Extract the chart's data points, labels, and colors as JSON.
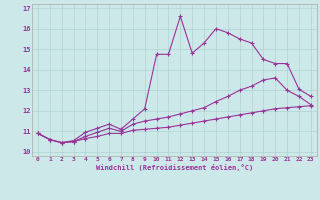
{
  "xlabel": "Windchill (Refroidissement éolien,°C)",
  "background_color": "#cce8e8",
  "line_color": "#993399",
  "xlim": [
    -0.5,
    23.5
  ],
  "ylim": [
    9.8,
    17.2
  ],
  "yticks": [
    10,
    11,
    12,
    13,
    14,
    15,
    16,
    17
  ],
  "xticks": [
    0,
    1,
    2,
    3,
    4,
    5,
    6,
    7,
    8,
    9,
    10,
    11,
    12,
    13,
    14,
    15,
    16,
    17,
    18,
    19,
    20,
    21,
    22,
    23
  ],
  "series1_x": [
    0,
    1,
    2,
    3,
    4,
    5,
    6,
    7,
    8,
    9,
    10,
    11,
    12,
    13,
    14,
    15,
    16,
    17,
    18,
    19,
    20,
    21,
    22,
    23
  ],
  "series1_y": [
    10.9,
    10.6,
    10.45,
    10.5,
    10.65,
    10.75,
    10.9,
    10.9,
    11.05,
    11.1,
    11.15,
    11.2,
    11.3,
    11.4,
    11.5,
    11.6,
    11.7,
    11.8,
    11.9,
    12.0,
    12.1,
    12.15,
    12.2,
    12.25
  ],
  "series2_x": [
    0,
    1,
    2,
    3,
    4,
    5,
    6,
    7,
    8,
    9,
    10,
    11,
    12,
    13,
    14,
    15,
    16,
    17,
    18,
    19,
    20,
    21,
    22,
    23
  ],
  "series2_y": [
    10.9,
    10.6,
    10.45,
    10.5,
    10.75,
    10.95,
    11.15,
    11.0,
    11.35,
    11.5,
    11.6,
    11.7,
    11.85,
    12.0,
    12.15,
    12.45,
    12.7,
    13.0,
    13.2,
    13.5,
    13.6,
    13.0,
    12.7,
    12.3
  ],
  "series3_x": [
    0,
    1,
    2,
    3,
    4,
    5,
    6,
    7,
    8,
    9,
    10,
    11,
    12,
    13,
    14,
    15,
    16,
    17,
    18,
    19,
    20,
    21,
    22,
    23
  ],
  "series3_y": [
    10.9,
    10.6,
    10.45,
    10.55,
    10.95,
    11.15,
    11.35,
    11.1,
    11.6,
    12.1,
    14.75,
    14.75,
    16.6,
    14.8,
    15.3,
    16.0,
    15.8,
    15.5,
    15.3,
    14.5,
    14.3,
    14.3,
    13.05,
    12.7
  ]
}
